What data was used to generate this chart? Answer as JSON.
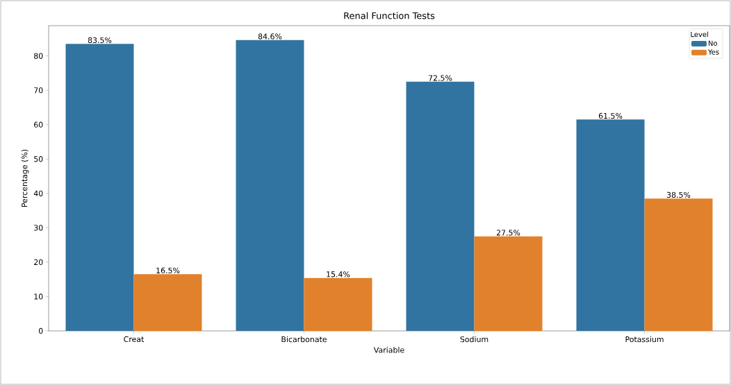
{
  "chart_data": {
    "type": "bar",
    "title": "Renal Function Tests",
    "xlabel": "Variable",
    "ylabel": "Percentage (%)",
    "legend_title": "Level",
    "legend": "top right",
    "categories": [
      "Creat",
      "Bicarbonate",
      "Sodium",
      "Potassium"
    ],
    "series": [
      {
        "name": "No",
        "color": "#3274a1",
        "values": [
          83.5,
          84.6,
          72.5,
          61.5
        ],
        "value_labels": [
          "83.5%",
          "84.6%",
          "72.5%",
          "61.5%"
        ]
      },
      {
        "name": "Yes",
        "color": "#e1812c",
        "values": [
          16.5,
          15.4,
          27.5,
          38.5
        ],
        "value_labels": [
          "16.5%",
          "15.4%",
          "27.5%",
          "38.5%"
        ]
      }
    ],
    "ylim": [
      0,
      88.8
    ],
    "yticks": [
      0,
      10,
      20,
      30,
      40,
      50,
      60,
      70,
      80
    ]
  }
}
